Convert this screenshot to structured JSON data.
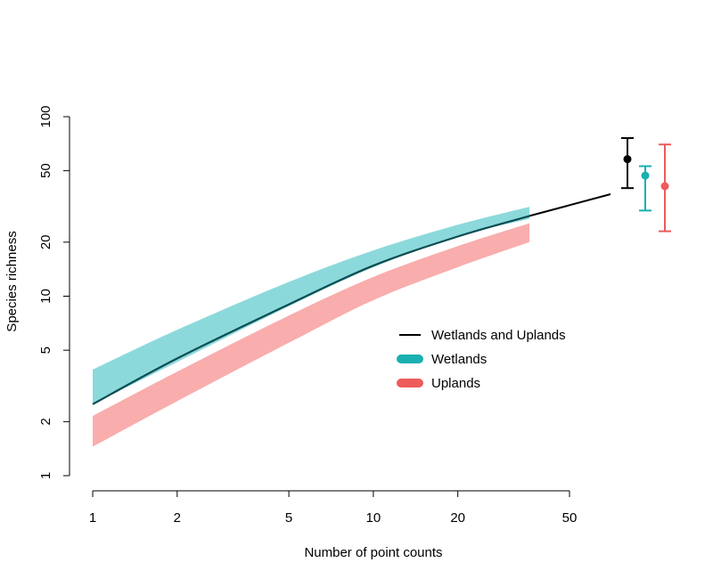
{
  "chart_data": {
    "type": "line",
    "xlabel": "Number of point counts",
    "ylabel": "Species richness",
    "x_scale": "log",
    "y_scale": "log",
    "xlim": [
      1,
      70
    ],
    "ylim": [
      1,
      100
    ],
    "x_ticks": [
      1,
      2,
      5,
      10,
      20,
      50
    ],
    "y_ticks": [
      1,
      2,
      5,
      10,
      20,
      50,
      100
    ],
    "grid": false,
    "legend_position": "center-right",
    "legend": [
      {
        "label": "Wetlands and Uplands",
        "color": "#000000",
        "style": "line"
      },
      {
        "label": "Wetlands",
        "color": "#1AAFB0",
        "style": "thick-line"
      },
      {
        "label": "Uplands",
        "color": "#EE5B5B",
        "style": "thick-line"
      }
    ],
    "series": [
      {
        "name": "Wetlands and Uplands",
        "kind": "line",
        "color": "#000000",
        "x": [
          1,
          2,
          5,
          10,
          20,
          36,
          70
        ],
        "y": [
          2.5,
          4.5,
          9.0,
          14.8,
          21.5,
          28.0,
          37.0
        ]
      },
      {
        "name": "Wetlands",
        "kind": "band",
        "color": "#8CD9DB",
        "x": [
          1,
          2,
          5,
          10,
          20,
          36
        ],
        "lower": [
          2.5,
          4.3,
          8.8,
          14.5,
          21.5,
          27.0
        ],
        "upper": [
          3.9,
          6.5,
          12.0,
          18.0,
          25.0,
          31.5
        ]
      },
      {
        "name": "Uplands",
        "kind": "band",
        "color": "#F9ADAD",
        "x": [
          1,
          2,
          5,
          10,
          20,
          36
        ],
        "lower": [
          1.45,
          2.6,
          5.5,
          9.5,
          14.5,
          20.0
        ],
        "upper": [
          2.15,
          3.8,
          7.8,
          12.8,
          19.0,
          25.5
        ]
      }
    ],
    "extrapolated_estimates": [
      {
        "name": "Wetlands and Uplands",
        "color": "#000000",
        "estimate": 58,
        "lower": 40,
        "upper": 76
      },
      {
        "name": "Wetlands",
        "color": "#1AAFB0",
        "estimate": 47,
        "lower": 30,
        "upper": 53
      },
      {
        "name": "Uplands",
        "color": "#EE5B5B",
        "estimate": 41,
        "lower": 23,
        "upper": 70
      }
    ]
  }
}
